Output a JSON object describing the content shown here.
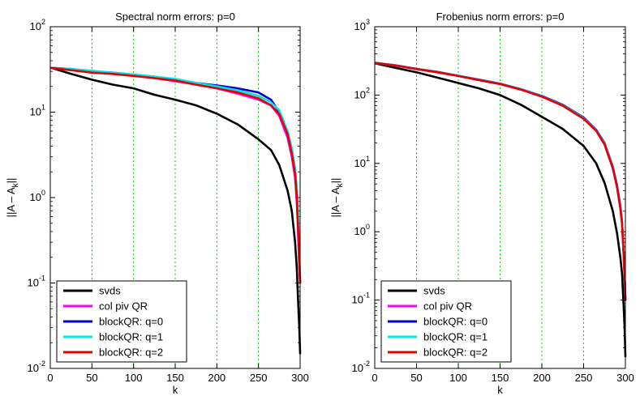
{
  "chart_data": [
    {
      "type": "line",
      "title": "Spectral norm errors: p=0",
      "xlabel": "k",
      "ylabel": "||A – A_k||",
      "xlim": [
        0,
        300
      ],
      "ylim": [
        0.01,
        100
      ],
      "yscale": "log",
      "xticks": [
        "0",
        "50",
        "100",
        "150",
        "200",
        "250",
        "300"
      ],
      "yticks": [
        {
          "base": "10",
          "exp": "-2"
        },
        {
          "base": "10",
          "exp": "-1"
        },
        {
          "base": "10",
          "exp": "0"
        },
        {
          "base": "10",
          "exp": "1"
        },
        {
          "base": "10",
          "exp": "2"
        }
      ],
      "vgrid_x": [
        50,
        100,
        150,
        200,
        250
      ],
      "grid_color": "#00cc00",
      "legend_position": "bottom-left",
      "series": [
        {
          "name": "svds",
          "color": "#000000",
          "x": [
            1,
            25,
            50,
            75,
            100,
            125,
            150,
            175,
            200,
            225,
            250,
            265,
            275,
            285,
            290,
            294,
            296,
            298,
            299,
            300
          ],
          "y": [
            33,
            28,
            24,
            21,
            19,
            16,
            14,
            12,
            9.6,
            7.2,
            4.8,
            3.6,
            2.4,
            1.2,
            0.7,
            0.3,
            0.15,
            0.05,
            0.03,
            0.015
          ]
        },
        {
          "name": "col piv QR",
          "color": "#ff00ff",
          "x": [
            1,
            25,
            50,
            75,
            100,
            125,
            150,
            175,
            200,
            225,
            250,
            265,
            275,
            285,
            290,
            294,
            296,
            298,
            299,
            300
          ],
          "y": [
            33,
            32,
            30,
            28,
            27,
            25,
            23,
            21,
            19,
            16.5,
            14,
            12,
            9,
            5,
            3,
            1.7,
            0.9,
            0.3,
            0.15,
            0.1
          ]
        },
        {
          "name": "blockQR: q=0",
          "color": "#0000cc",
          "x": [
            1,
            25,
            50,
            75,
            100,
            125,
            150,
            175,
            200,
            225,
            250,
            265,
            275,
            285,
            290,
            294,
            296,
            298,
            299,
            300
          ],
          "y": [
            33,
            32,
            30,
            29,
            27.5,
            26,
            24,
            22,
            20.5,
            19,
            17,
            14,
            10,
            5.5,
            3.5,
            2,
            1.2,
            0.4,
            0.2,
            0.1
          ]
        },
        {
          "name": "blockQR: q=1",
          "color": "#00e5e5",
          "x": [
            1,
            25,
            50,
            75,
            100,
            125,
            150,
            175,
            200,
            225,
            250,
            265,
            275,
            285,
            290,
            294,
            296,
            298,
            299,
            300
          ],
          "y": [
            33,
            32,
            30.5,
            29,
            27.5,
            26,
            24.5,
            22,
            20,
            18,
            15.5,
            13,
            10.5,
            6,
            3.8,
            2.2,
            1.3,
            0.45,
            0.2,
            0.1
          ]
        },
        {
          "name": "blockQR: q=2",
          "color": "#e50000",
          "x": [
            1,
            25,
            50,
            75,
            100,
            125,
            150,
            175,
            200,
            225,
            250,
            265,
            275,
            285,
            290,
            294,
            296,
            298,
            299,
            300
          ],
          "y": [
            33,
            31,
            29,
            28,
            26.5,
            25,
            23.5,
            21,
            19,
            17,
            14.5,
            12,
            9.5,
            5.5,
            3.3,
            1.9,
            1.0,
            0.35,
            0.17,
            0.1
          ]
        }
      ]
    },
    {
      "type": "line",
      "title": "Frobenius norm errors: p=0",
      "xlabel": "k",
      "ylabel": "||A – A_k||",
      "xlim": [
        0,
        300
      ],
      "ylim": [
        0.01,
        1000
      ],
      "yscale": "log",
      "xticks": [
        "0",
        "50",
        "100",
        "150",
        "200",
        "250",
        "300"
      ],
      "yticks": [
        {
          "base": "10",
          "exp": "-2"
        },
        {
          "base": "10",
          "exp": "-1"
        },
        {
          "base": "10",
          "exp": "0"
        },
        {
          "base": "10",
          "exp": "1"
        },
        {
          "base": "10",
          "exp": "2"
        },
        {
          "base": "10",
          "exp": "3"
        }
      ],
      "vgrid_x": [
        50,
        100,
        150,
        200,
        250
      ],
      "grid_color": "#00cc00",
      "legend_position": "bottom-left",
      "series": [
        {
          "name": "svds",
          "color": "#000000",
          "x": [
            1,
            25,
            50,
            75,
            100,
            125,
            150,
            175,
            200,
            225,
            250,
            265,
            275,
            285,
            290,
            294,
            296,
            298,
            299,
            300
          ],
          "y": [
            290,
            250,
            215,
            180,
            150,
            125,
            100,
            72,
            48,
            32,
            18,
            10,
            5.2,
            2,
            0.95,
            0.42,
            0.24,
            0.08,
            0.04,
            0.015
          ]
        },
        {
          "name": "col piv QR",
          "color": "#ff00ff",
          "x": [
            1,
            25,
            50,
            75,
            100,
            125,
            150,
            175,
            200,
            225,
            250,
            265,
            275,
            285,
            290,
            294,
            296,
            298,
            299,
            300
          ],
          "y": [
            295,
            270,
            240,
            215,
            190,
            165,
            145,
            120,
            95,
            70,
            45,
            30,
            19,
            8.5,
            4.5,
            2.2,
            1.3,
            0.45,
            0.22,
            0.1
          ]
        },
        {
          "name": "blockQR: q=0",
          "color": "#0000cc",
          "x": [
            1,
            25,
            50,
            75,
            100,
            125,
            150,
            175,
            200,
            225,
            250,
            265,
            275,
            285,
            290,
            294,
            296,
            298,
            299,
            300
          ],
          "y": [
            295,
            272,
            242,
            218,
            192,
            168,
            147,
            122,
            97,
            72,
            47,
            31,
            20,
            9,
            4.8,
            2.4,
            1.4,
            0.48,
            0.24,
            0.1
          ]
        },
        {
          "name": "blockQR: q=1",
          "color": "#00e5e5",
          "x": [
            1,
            25,
            50,
            75,
            100,
            125,
            150,
            175,
            200,
            225,
            250,
            265,
            275,
            285,
            290,
            294,
            296,
            298,
            299,
            300
          ],
          "y": [
            295,
            271,
            241,
            216,
            191,
            166,
            146,
            121,
            96,
            71,
            46,
            30.5,
            19.5,
            8.8,
            4.6,
            2.3,
            1.35,
            0.46,
            0.23,
            0.1
          ]
        },
        {
          "name": "blockQR: q=2",
          "color": "#e50000",
          "x": [
            1,
            25,
            50,
            75,
            100,
            125,
            150,
            175,
            200,
            225,
            250,
            265,
            275,
            285,
            290,
            294,
            296,
            298,
            299,
            300
          ],
          "y": [
            295,
            270,
            240,
            215,
            190,
            165,
            145,
            120,
            95,
            70,
            45,
            30,
            19,
            8.5,
            4.5,
            2.2,
            1.3,
            0.45,
            0.22,
            0.1
          ]
        }
      ]
    }
  ]
}
